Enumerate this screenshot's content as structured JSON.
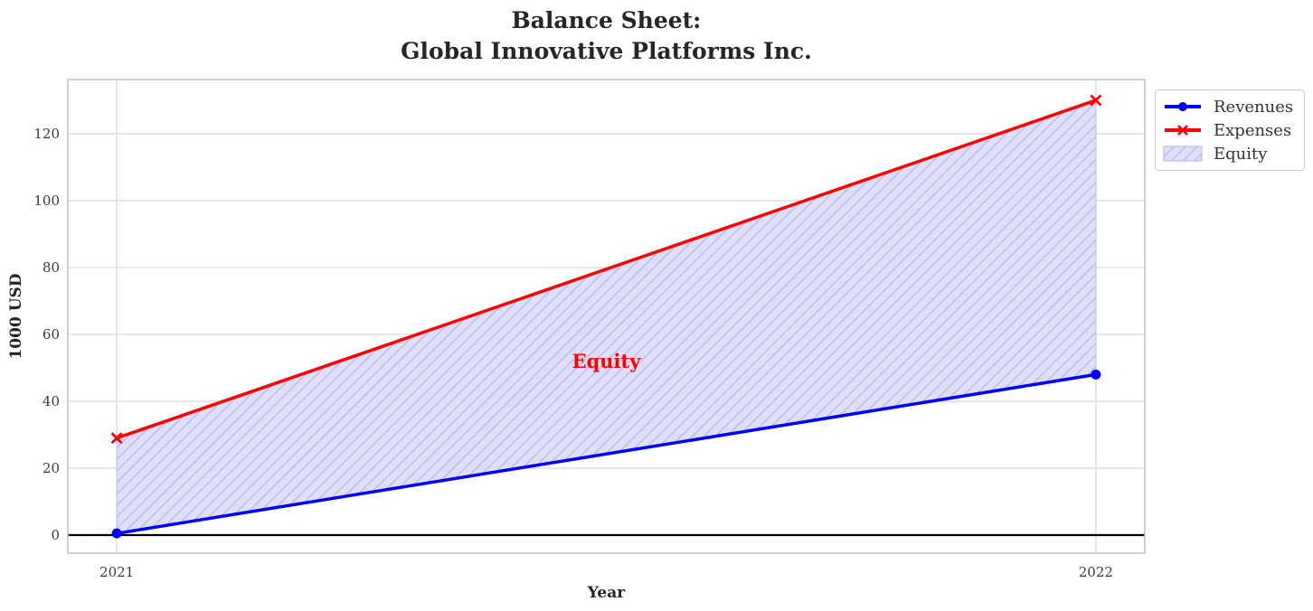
{
  "title": {
    "line1": "Balance Sheet:",
    "line2": "Global Innovative Platforms Inc."
  },
  "chart_data": {
    "type": "line",
    "x": [
      2021,
      2022
    ],
    "series": [
      {
        "name": "Revenues",
        "values": [
          0.5,
          48
        ],
        "color": "#0000ff",
        "marker": "circle"
      },
      {
        "name": "Expenses",
        "values": [
          29,
          130
        ],
        "color": "#ff0000",
        "marker": "x"
      }
    ],
    "fill_between": {
      "label": "Equity",
      "lower_series": "Revenues",
      "upper_series": "Expenses",
      "facecolor": "#dfdff7",
      "hatch_color": "#bcbcee",
      "hatch_style": "diagonal"
    },
    "annotation": {
      "text": "Equity",
      "x": 2021.5,
      "y": 51.5,
      "color": "#ff0000"
    },
    "xlabel": "Year",
    "ylabel": "1000 USD",
    "xticks": [
      2021,
      2022
    ],
    "yticks": [
      0,
      20,
      40,
      60,
      80,
      100,
      120
    ],
    "xlim": [
      2020.95,
      2022.05
    ],
    "ylim": [
      -5.4,
      136.2
    ],
    "grid": true,
    "zero_line": true,
    "legend_position": "outside-upper-right"
  },
  "legend": {
    "entries": [
      {
        "label": "Revenues",
        "type": "line",
        "color": "#0000ff",
        "marker": "circle"
      },
      {
        "label": "Expenses",
        "type": "line",
        "color": "#ff0000",
        "marker": "x"
      },
      {
        "label": "Equity",
        "type": "patch"
      }
    ]
  },
  "colors": {
    "grid": "#d9d9d9",
    "spine": "#c4c4c4",
    "zero_line": "#000000",
    "tick_text": "#3a3a3a",
    "title_text": "#262626",
    "revenues": "#0000ff",
    "expenses": "#ff0000",
    "equity_face": "#dfdff7",
    "equity_hatch": "#bcbcee",
    "annotation": "#ff0000"
  }
}
